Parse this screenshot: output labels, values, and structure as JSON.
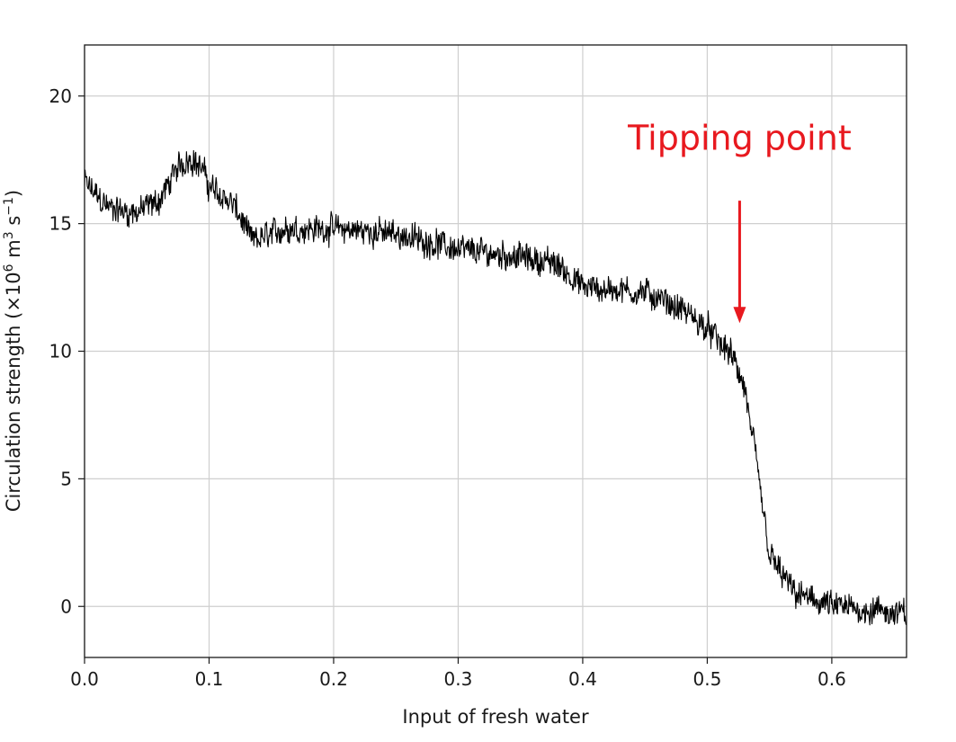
{
  "chart_data": {
    "type": "line",
    "title": "",
    "xlabel": "Input of fresh water",
    "ylabel": "Circulation strength (×10",
    "ylabel_sup1": "6",
    "ylabel_mid": " m",
    "ylabel_sup2": "3",
    "ylabel_mid2": " s",
    "ylabel_sup3": "−1",
    "ylabel_end": ")",
    "xlim": [
      0.0,
      0.66
    ],
    "ylim": [
      -2,
      22
    ],
    "grid": true,
    "x_ticks": [
      0.0,
      0.1,
      0.2,
      0.3,
      0.4,
      0.5,
      0.6
    ],
    "x_tick_labels": [
      "0.0",
      "0.1",
      "0.2",
      "0.3",
      "0.4",
      "0.5",
      "0.6"
    ],
    "y_ticks": [
      0,
      5,
      10,
      15,
      20
    ],
    "y_tick_labels": [
      "0",
      "5",
      "10",
      "15",
      "20"
    ],
    "series": [
      {
        "color": "#000000",
        "noise_amplitude": 0.8,
        "trend": [
          [
            0.0,
            16.6
          ],
          [
            0.02,
            15.6
          ],
          [
            0.04,
            15.4
          ],
          [
            0.06,
            15.9
          ],
          [
            0.075,
            17.2
          ],
          [
            0.085,
            17.6
          ],
          [
            0.095,
            17.1
          ],
          [
            0.1,
            16.5
          ],
          [
            0.12,
            15.7
          ],
          [
            0.135,
            14.3
          ],
          [
            0.16,
            14.8
          ],
          [
            0.2,
            14.8
          ],
          [
            0.25,
            14.6
          ],
          [
            0.3,
            14.0
          ],
          [
            0.35,
            13.7
          ],
          [
            0.38,
            13.4
          ],
          [
            0.4,
            12.5
          ],
          [
            0.45,
            12.3
          ],
          [
            0.48,
            11.6
          ],
          [
            0.5,
            10.9
          ],
          [
            0.52,
            9.8
          ],
          [
            0.53,
            8.5
          ],
          [
            0.54,
            5.5
          ],
          [
            0.55,
            2.0
          ],
          [
            0.57,
            0.5
          ],
          [
            0.6,
            0.0
          ],
          [
            0.66,
            -0.3
          ]
        ]
      }
    ],
    "annotations": [
      {
        "text": "Tipping point",
        "color": "#e8191f",
        "text_x": 0.526,
        "text_y": 17.9,
        "arrow_from": [
          0.526,
          15.9
        ],
        "arrow_to": [
          0.526,
          11.1
        ]
      }
    ]
  }
}
